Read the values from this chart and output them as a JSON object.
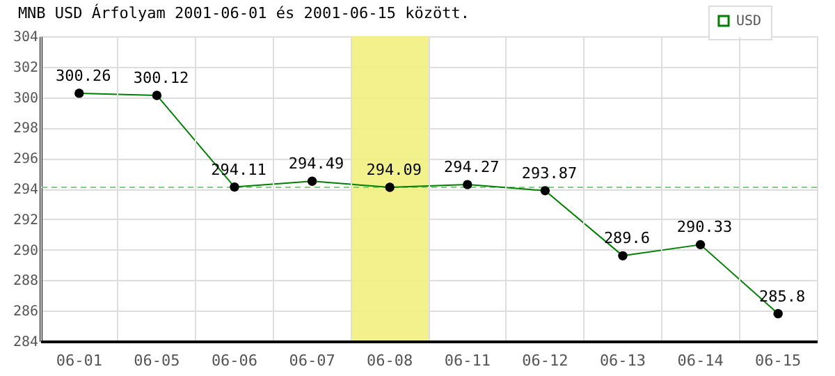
{
  "chart_data": {
    "type": "line",
    "title": "MNB USD Árfolyam 2001-06-01 és 2001-06-15 között.",
    "categories": [
      "06-01",
      "06-05",
      "06-06",
      "06-07",
      "06-08",
      "06-11",
      "06-12",
      "06-13",
      "06-14",
      "06-15"
    ],
    "series": [
      {
        "name": "USD",
        "color": "#008000",
        "values": [
          300.26,
          300.12,
          294.11,
          294.49,
          294.09,
          294.27,
          293.87,
          289.6,
          290.33,
          285.8
        ]
      }
    ],
    "ylim": [
      284,
      304
    ],
    "yticks": [
      284,
      286,
      288,
      290,
      292,
      294,
      296,
      298,
      300,
      302,
      304
    ],
    "grid": true,
    "legend": "top right",
    "marker": "circle",
    "data_labels": true,
    "ref_lines": [
      {
        "axis": "y",
        "value": 294.09,
        "color": "#80d080",
        "line_style": "dashed"
      }
    ],
    "bands": [
      {
        "axis": "x",
        "from": "06-08",
        "to": "06-08",
        "color": "#f2ef80"
      }
    ]
  }
}
